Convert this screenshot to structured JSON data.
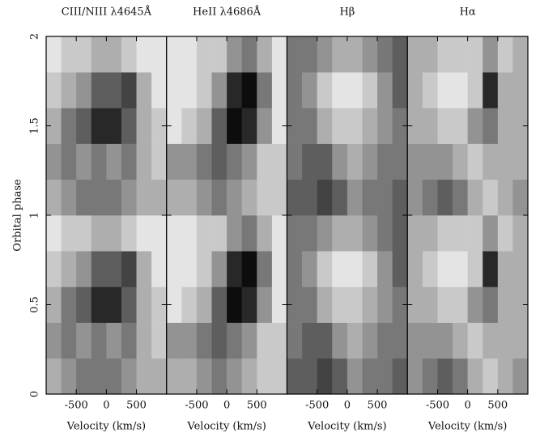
{
  "chart_data": [
    {
      "type": "heatmap",
      "title": "CIII/NIII λ4645Å",
      "xlabel": "Velocity (km/s)",
      "ylabel": "Orbital phase",
      "x": [
        -1000,
        -750,
        -500,
        -250,
        0,
        250,
        500,
        750,
        1000
      ],
      "y": [
        0,
        0.2,
        0.4,
        0.6,
        0.8,
        1,
        1.2,
        1.4,
        1.6,
        1.8,
        2
      ],
      "z": [
        [
          3,
          4,
          5,
          5,
          5,
          4,
          3,
          3
        ],
        [
          4,
          5,
          4,
          5,
          4,
          5,
          3,
          2
        ],
        [
          3,
          5,
          6,
          8,
          8,
          6,
          3,
          2
        ],
        [
          2,
          3,
          4,
          6,
          6,
          7,
          3,
          1
        ],
        [
          1,
          2,
          2,
          3,
          3,
          2,
          1,
          1
        ],
        [
          3,
          4,
          5,
          5,
          5,
          4,
          3,
          3
        ],
        [
          4,
          5,
          4,
          5,
          4,
          5,
          3,
          2
        ],
        [
          3,
          5,
          6,
          8,
          8,
          6,
          3,
          2
        ],
        [
          2,
          3,
          4,
          6,
          6,
          7,
          3,
          1
        ],
        [
          1,
          2,
          2,
          3,
          3,
          2,
          1,
          1
        ]
      ],
      "zlim": [
        0,
        9
      ],
      "xlim": [
        -1000,
        1000
      ],
      "ylim": [
        0,
        2
      ],
      "xticks": [
        -500,
        0,
        500
      ],
      "yticks": [
        0,
        0.5,
        1,
        1.5,
        2
      ]
    },
    {
      "type": "heatmap",
      "title": "HeII λ4686Å",
      "xlabel": "Velocity (km/s)",
      "x": [
        -1000,
        -750,
        -500,
        -250,
        0,
        250,
        500,
        750,
        1000
      ],
      "y": [
        0,
        0.2,
        0.4,
        0.6,
        0.8,
        1,
        1.2,
        1.4,
        1.6,
        1.8,
        2
      ],
      "z": [
        [
          3,
          3,
          4,
          5,
          4,
          3,
          2,
          2
        ],
        [
          4,
          4,
          5,
          6,
          5,
          4,
          2,
          2
        ],
        [
          1,
          2,
          3,
          6,
          9,
          8,
          4,
          1
        ],
        [
          1,
          1,
          2,
          4,
          8,
          9,
          5,
          1
        ],
        [
          1,
          1,
          2,
          2,
          4,
          5,
          3,
          1
        ],
        [
          3,
          3,
          4,
          5,
          4,
          3,
          2,
          2
        ],
        [
          4,
          4,
          5,
          6,
          5,
          4,
          2,
          2
        ],
        [
          1,
          2,
          3,
          6,
          9,
          8,
          4,
          1
        ],
        [
          1,
          1,
          2,
          4,
          8,
          9,
          5,
          1
        ],
        [
          1,
          1,
          2,
          2,
          4,
          5,
          3,
          1
        ]
      ],
      "zlim": [
        0,
        9
      ],
      "xlim": [
        -1000,
        1000
      ],
      "ylim": [
        0,
        2
      ],
      "xticks": [
        -500,
        0,
        500
      ]
    },
    {
      "type": "heatmap",
      "title": "Hβ",
      "xlabel": "Velocity (km/s)",
      "x": [
        -1000,
        -750,
        -500,
        -250,
        0,
        250,
        500,
        750,
        1000
      ],
      "y": [
        0,
        0.2,
        0.4,
        0.6,
        0.8,
        1,
        1.2,
        1.4,
        1.6,
        1.8,
        2
      ],
      "z": [
        [
          6,
          6,
          7,
          6,
          4,
          5,
          5,
          6
        ],
        [
          5,
          6,
          6,
          4,
          3,
          4,
          5,
          5
        ],
        [
          5,
          5,
          3,
          2,
          2,
          3,
          4,
          5
        ],
        [
          5,
          4,
          2,
          1,
          1,
          2,
          4,
          6
        ],
        [
          5,
          5,
          4,
          3,
          3,
          4,
          5,
          6
        ],
        [
          6,
          6,
          7,
          6,
          4,
          5,
          5,
          6
        ],
        [
          5,
          6,
          6,
          4,
          3,
          4,
          5,
          5
        ],
        [
          5,
          5,
          3,
          2,
          2,
          3,
          4,
          5
        ],
        [
          5,
          4,
          2,
          1,
          1,
          2,
          4,
          6
        ],
        [
          5,
          5,
          4,
          3,
          3,
          4,
          5,
          6
        ]
      ],
      "zlim": [
        0,
        9
      ],
      "xlim": [
        -1000,
        1000
      ],
      "ylim": [
        0,
        2
      ],
      "xticks": [
        -500,
        0,
        500
      ]
    },
    {
      "type": "heatmap",
      "title": "Hα",
      "xlabel": "Velocity (km/s)",
      "x": [
        -1000,
        -750,
        -500,
        -250,
        0,
        250,
        500,
        750,
        1000
      ],
      "y": [
        0,
        0.2,
        0.4,
        0.6,
        0.8,
        1,
        1.2,
        1.4,
        1.6,
        1.8,
        2
      ],
      "z": [
        [
          4,
          5,
          6,
          5,
          3,
          2,
          3,
          4
        ],
        [
          4,
          4,
          4,
          3,
          2,
          3,
          3,
          3
        ],
        [
          3,
          3,
          2,
          2,
          4,
          5,
          3,
          3
        ],
        [
          3,
          2,
          1,
          1,
          2,
          8,
          3,
          3
        ],
        [
          3,
          3,
          2,
          2,
          2,
          4,
          2,
          3
        ],
        [
          4,
          5,
          6,
          5,
          3,
          2,
          3,
          4
        ],
        [
          4,
          4,
          4,
          3,
          2,
          3,
          3,
          3
        ],
        [
          3,
          3,
          2,
          2,
          4,
          5,
          3,
          3
        ],
        [
          3,
          2,
          1,
          1,
          2,
          8,
          3,
          3
        ],
        [
          3,
          3,
          2,
          2,
          2,
          4,
          2,
          3
        ]
      ],
      "zlim": [
        0,
        9
      ],
      "xlim": [
        -1000,
        1000
      ],
      "ylim": [
        0,
        2
      ],
      "xticks": [
        -500,
        0,
        500
      ]
    }
  ]
}
